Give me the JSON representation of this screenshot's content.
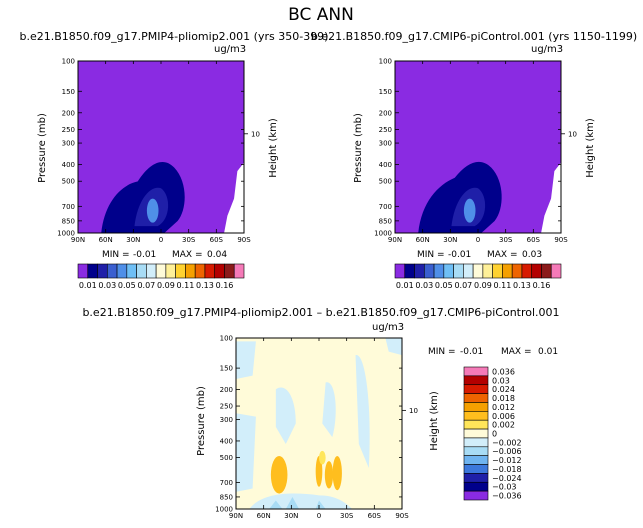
{
  "page": {
    "title": "BC ANN"
  },
  "chart_data": [
    {
      "type": "heatmap",
      "title": "b.e21.B1850.f09_g17.PMIP4-pliomip2.001 (yrs 350-399)",
      "units": "ug/m3",
      "ylabel": "Pressure (mb)",
      "ylabel_right": "Height (km)",
      "y_ticks": [
        "100",
        "150",
        "200",
        "250",
        "300",
        "400",
        "500",
        "700",
        "850",
        "1000"
      ],
      "x_ticks": [
        "90N",
        "60N",
        "30N",
        "0",
        "30S",
        "60S",
        "90S"
      ],
      "right_ticks": [
        "10"
      ],
      "stats": {
        "min_label": "MIN =",
        "min": "-0.01",
        "max_label": "MAX =",
        "max": "0.04"
      },
      "colorbar": {
        "orientation": "horizontal",
        "labels": [
          "0.01",
          "0.03",
          "0.05",
          "0.07",
          "0.09",
          "0.11",
          "0.13",
          "0.16"
        ],
        "colors": [
          "#8a2be2",
          "#00008b",
          "#1f1fa8",
          "#3a5fd0",
          "#4f8fe8",
          "#6fbff5",
          "#a8dcf5",
          "#d2eefa",
          "#fffbd9",
          "#fff098",
          "#ffd230",
          "#f5a000",
          "#ee6400",
          "#d71a00",
          "#b30000",
          "#8b1a1a",
          "#f57ab8"
        ]
      },
      "regions": [
        {
          "level": "0.01",
          "desc": "background BC concentration over most of the domain"
        },
        {
          "level": "0.03",
          "desc": "northern hemisphere tropics near surface"
        },
        {
          "level": "0.05",
          "desc": "core near equator 700-900 mb"
        }
      ]
    },
    {
      "type": "heatmap",
      "title": "b.e21.B1850.f09_g17.CMIP6-piControl.001 (yrs 1150-1199)",
      "units": "ug/m3",
      "ylabel": "Pressure (mb)",
      "ylabel_right": "Height (km)",
      "y_ticks": [
        "100",
        "150",
        "200",
        "250",
        "300",
        "400",
        "500",
        "700",
        "850",
        "1000"
      ],
      "x_ticks": [
        "90N",
        "60N",
        "30N",
        "0",
        "30S",
        "60S",
        "90S"
      ],
      "right_ticks": [
        "10"
      ],
      "stats": {
        "min_label": "MIN =",
        "min": "-0.01",
        "max_label": "MAX =",
        "max": "0.03"
      },
      "colorbar": {
        "orientation": "horizontal",
        "labels": [
          "0.01",
          "0.03",
          "0.05",
          "0.07",
          "0.09",
          "0.11",
          "0.13",
          "0.16"
        ],
        "colors": [
          "#8a2be2",
          "#00008b",
          "#1f1fa8",
          "#3a5fd0",
          "#4f8fe8",
          "#6fbff5",
          "#a8dcf5",
          "#d2eefa",
          "#fffbd9",
          "#fff098",
          "#ffd230",
          "#f5a000",
          "#ee6400",
          "#d71a00",
          "#b30000",
          "#8b1a1a",
          "#f57ab8"
        ]
      }
    },
    {
      "type": "heatmap",
      "title": "b.e21.B1850.f09_g17.PMIP4-pliomip2.001 – b.e21.B1850.f09_g17.CMIP6-piControl.001",
      "units": "ug/m3",
      "ylabel": "Pressure (mb)",
      "ylabel_right": "Height (km)",
      "y_ticks": [
        "100",
        "150",
        "200",
        "250",
        "300",
        "400",
        "500",
        "700",
        "850",
        "1000"
      ],
      "x_ticks": [
        "90N",
        "60N",
        "30N",
        "0",
        "30S",
        "60S",
        "90S"
      ],
      "right_ticks": [
        "10"
      ],
      "stats": {
        "min_label": "MIN =",
        "min": "-0.01",
        "max_label": "MAX =",
        "max": "0.01"
      },
      "colorbar": {
        "orientation": "vertical",
        "labels": [
          "0.036",
          "0.03",
          "0.024",
          "0.018",
          "0.012",
          "0.006",
          "0.002",
          "0",
          "−0.002",
          "−0.006",
          "−0.012",
          "−0.018",
          "−0.024",
          "−0.03",
          "−0.036"
        ],
        "colors": [
          "#f57ab8",
          "#b30000",
          "#d71a00",
          "#ee6400",
          "#f5a000",
          "#ffbe1e",
          "#ffe65a",
          "#fffbd9",
          "#d2eefa",
          "#a8dcf5",
          "#6fb4f0",
          "#3c78dc",
          "#1f1fa8",
          "#00008b",
          "#8a2be2"
        ]
      }
    }
  ]
}
